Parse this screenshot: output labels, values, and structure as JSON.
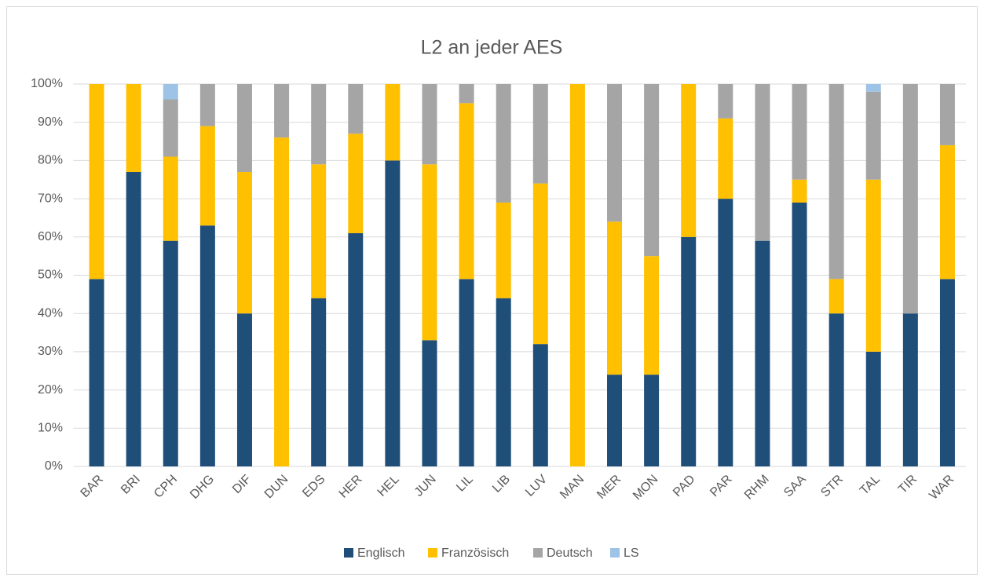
{
  "chart_data": {
    "type": "stacked_bar",
    "title": "L2 an jeder AES",
    "categories": [
      "BAR",
      "BRI",
      "CPH",
      "DHG",
      "DIF",
      "DUN",
      "EDS",
      "HER",
      "HEL",
      "JUN",
      "LIL",
      "LIB",
      "LUV",
      "MAN",
      "MER",
      "MON",
      "PAD",
      "PAR",
      "RHM",
      "SAA",
      "STR",
      "TAL",
      "TIR",
      "WAR"
    ],
    "series": [
      {
        "name": "Englisch",
        "color": "#1f4e79",
        "values": [
          49,
          77,
          59,
          63,
          40,
          0,
          44,
          61,
          80,
          33,
          49,
          44,
          32,
          0,
          24,
          24,
          60,
          70,
          59,
          69,
          40,
          30,
          40,
          49
        ]
      },
      {
        "name": "Französisch",
        "color": "#ffc000",
        "values": [
          51,
          23,
          22,
          26,
          37,
          86,
          35,
          26,
          20,
          46,
          46,
          25,
          42,
          100,
          40,
          31,
          40,
          21,
          0,
          6,
          9,
          45,
          0,
          35
        ]
      },
      {
        "name": "Deutsch",
        "color": "#a5a5a5",
        "values": [
          0,
          0,
          15,
          11,
          23,
          14,
          21,
          13,
          0,
          21,
          5,
          31,
          26,
          0,
          36,
          45,
          0,
          9,
          41,
          25,
          51,
          23,
          60,
          16
        ]
      },
      {
        "name": "LS",
        "color": "#9dc3e6",
        "values": [
          0,
          0,
          4,
          0,
          0,
          0,
          0,
          0,
          0,
          0,
          0,
          0,
          0,
          0,
          0,
          0,
          0,
          0,
          0,
          0,
          0,
          2,
          0,
          0
        ]
      }
    ],
    "ylim": [
      0,
      100
    ],
    "yticks": [
      {
        "value": 0,
        "label": "0%"
      },
      {
        "value": 10,
        "label": "10%"
      },
      {
        "value": 20,
        "label": "20%"
      },
      {
        "value": 30,
        "label": "30%"
      },
      {
        "value": 40,
        "label": "40%"
      },
      {
        "value": 50,
        "label": "50%"
      },
      {
        "value": 60,
        "label": "60%"
      },
      {
        "value": 70,
        "label": "70%"
      },
      {
        "value": 80,
        "label": "80%"
      },
      {
        "value": 90,
        "label": "90%"
      },
      {
        "value": 100,
        "label": "100%"
      }
    ],
    "grid": true,
    "legend": "bottom"
  }
}
